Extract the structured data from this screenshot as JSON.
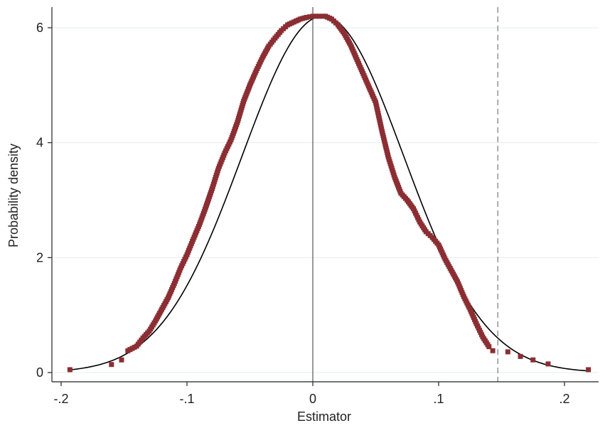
{
  "chart_data": {
    "type": "scatter",
    "title": "",
    "xlabel": "Estimator",
    "ylabel": "Probability density",
    "xlim": [
      -0.2,
      0.22
    ],
    "ylim": [
      0,
      6.3
    ],
    "x_ticks": [
      -0.2,
      -0.1,
      0,
      0.1,
      0.2
    ],
    "x_tick_labels": [
      "-.2",
      "-.1",
      "0",
      ".1",
      ".2"
    ],
    "y_ticks": [
      0,
      2,
      4,
      6
    ],
    "y_tick_labels": [
      "0",
      "2",
      "4",
      "6"
    ],
    "grid": "horizontal",
    "legend": "none",
    "reference_lines": [
      {
        "name": "zero-line",
        "x": 0,
        "style": "solid"
      },
      {
        "name": "estimate-line",
        "x": 0.147,
        "style": "dashed"
      }
    ],
    "series": [
      {
        "kind": "points",
        "color": "#8b2e33",
        "x": [
          -0.193,
          -0.16,
          -0.152,
          -0.147,
          -0.14,
          -0.135,
          -0.13,
          -0.125,
          -0.12,
          -0.115,
          -0.11,
          -0.105,
          -0.1,
          -0.095,
          -0.09,
          -0.085,
          -0.08,
          -0.075,
          -0.07,
          -0.065,
          -0.06,
          -0.055,
          -0.05,
          -0.045,
          -0.04,
          -0.035,
          -0.03,
          -0.025,
          -0.02,
          -0.015,
          -0.01,
          -0.005,
          0.0,
          0.005,
          0.01,
          0.015,
          0.02,
          0.025,
          0.03,
          0.035,
          0.04,
          0.045,
          0.05,
          0.055,
          0.06,
          0.065,
          0.07,
          0.075,
          0.08,
          0.085,
          0.09,
          0.095,
          0.1,
          0.105,
          0.11,
          0.115,
          0.12,
          0.125,
          0.13,
          0.135,
          0.14,
          0.143,
          0.155,
          0.165,
          0.175,
          0.187,
          0.219
        ],
        "y": [
          0.05,
          0.14,
          0.22,
          0.38,
          0.46,
          0.6,
          0.72,
          0.9,
          1.1,
          1.3,
          1.55,
          1.82,
          2.05,
          2.32,
          2.58,
          2.88,
          3.2,
          3.55,
          3.82,
          4.05,
          4.35,
          4.72,
          5.0,
          5.25,
          5.48,
          5.68,
          5.82,
          5.95,
          6.05,
          6.1,
          6.15,
          6.18,
          6.2,
          6.2,
          6.2,
          6.15,
          6.05,
          5.9,
          5.7,
          5.45,
          5.2,
          4.95,
          4.7,
          4.2,
          3.75,
          3.4,
          3.12,
          3.0,
          2.85,
          2.62,
          2.45,
          2.35,
          2.22,
          1.98,
          1.78,
          1.58,
          1.32,
          1.1,
          0.85,
          0.62,
          0.45,
          0.38,
          0.36,
          0.28,
          0.22,
          0.15,
          0.05
        ]
      },
      {
        "kind": "curve",
        "color": "#000000",
        "mean": 0.008,
        "sd": 0.0643
      }
    ]
  }
}
